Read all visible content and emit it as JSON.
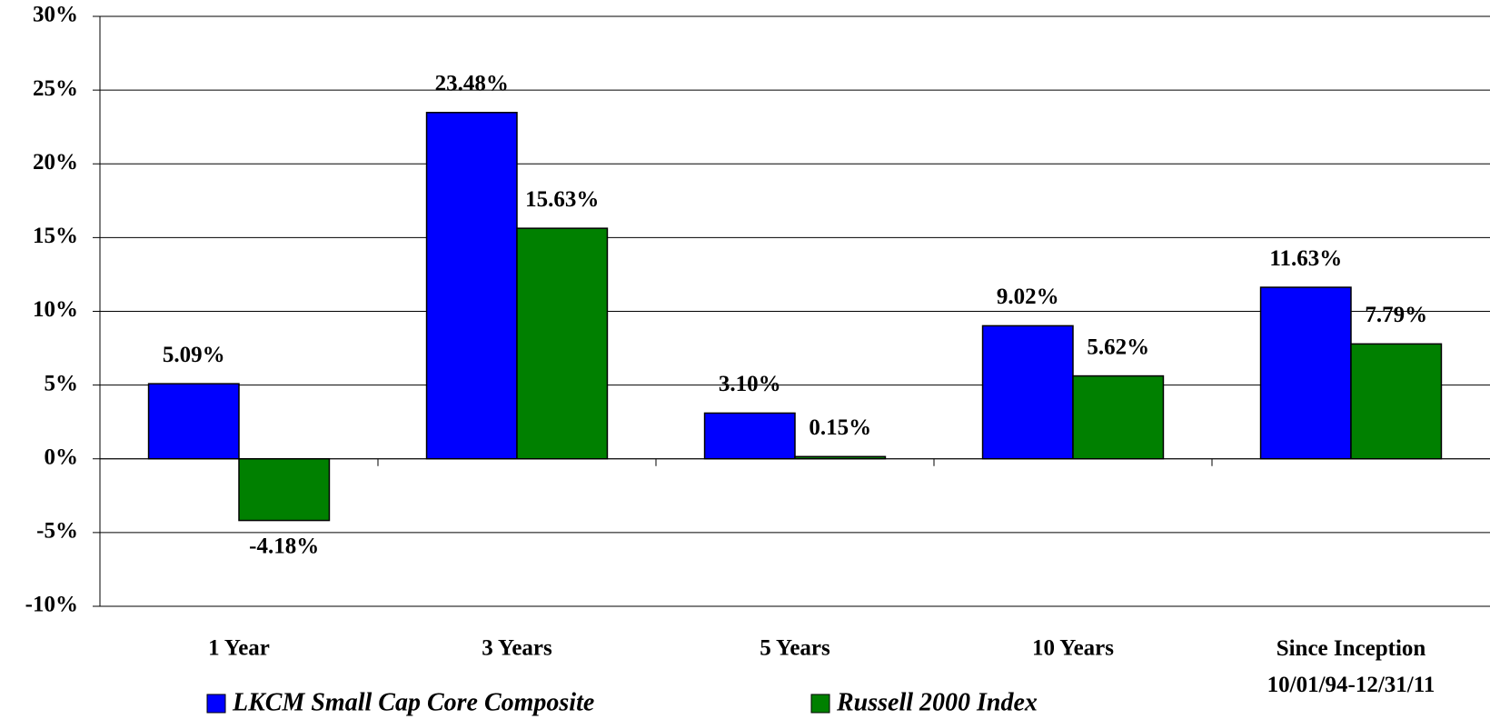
{
  "chart_data": {
    "type": "bar",
    "categories": [
      "1 Year",
      "3 Years",
      "5 Years",
      "10 Years",
      "Since Inception\n10/01/94-12/31/11"
    ],
    "series": [
      {
        "name": "LKCM Small Cap Core Composite",
        "color": "#0000ff",
        "values": [
          5.09,
          23.48,
          3.1,
          9.02,
          11.63
        ],
        "value_labels": [
          "5.09%",
          "23.48%",
          "3.10%",
          "9.02%",
          "11.63%"
        ]
      },
      {
        "name": "Russell 2000 Index",
        "color": "#008000",
        "values": [
          -4.18,
          15.63,
          0.15,
          5.62,
          7.79
        ],
        "value_labels": [
          "-4.18%",
          "15.63%",
          "0.15%",
          "5.62%",
          "7.79%"
        ]
      }
    ],
    "ylim": [
      -10,
      30
    ],
    "yticks": [
      {
        "value": -10,
        "label": "-10%"
      },
      {
        "value": -5,
        "label": "-5%"
      },
      {
        "value": 0,
        "label": "0%"
      },
      {
        "value": 5,
        "label": "5%"
      },
      {
        "value": 10,
        "label": "10%"
      },
      {
        "value": 15,
        "label": "15%"
      },
      {
        "value": 20,
        "label": "20%"
      },
      {
        "value": 25,
        "label": "25%"
      },
      {
        "value": 30,
        "label": "30%"
      }
    ],
    "grid": true,
    "legend": "bottom"
  }
}
